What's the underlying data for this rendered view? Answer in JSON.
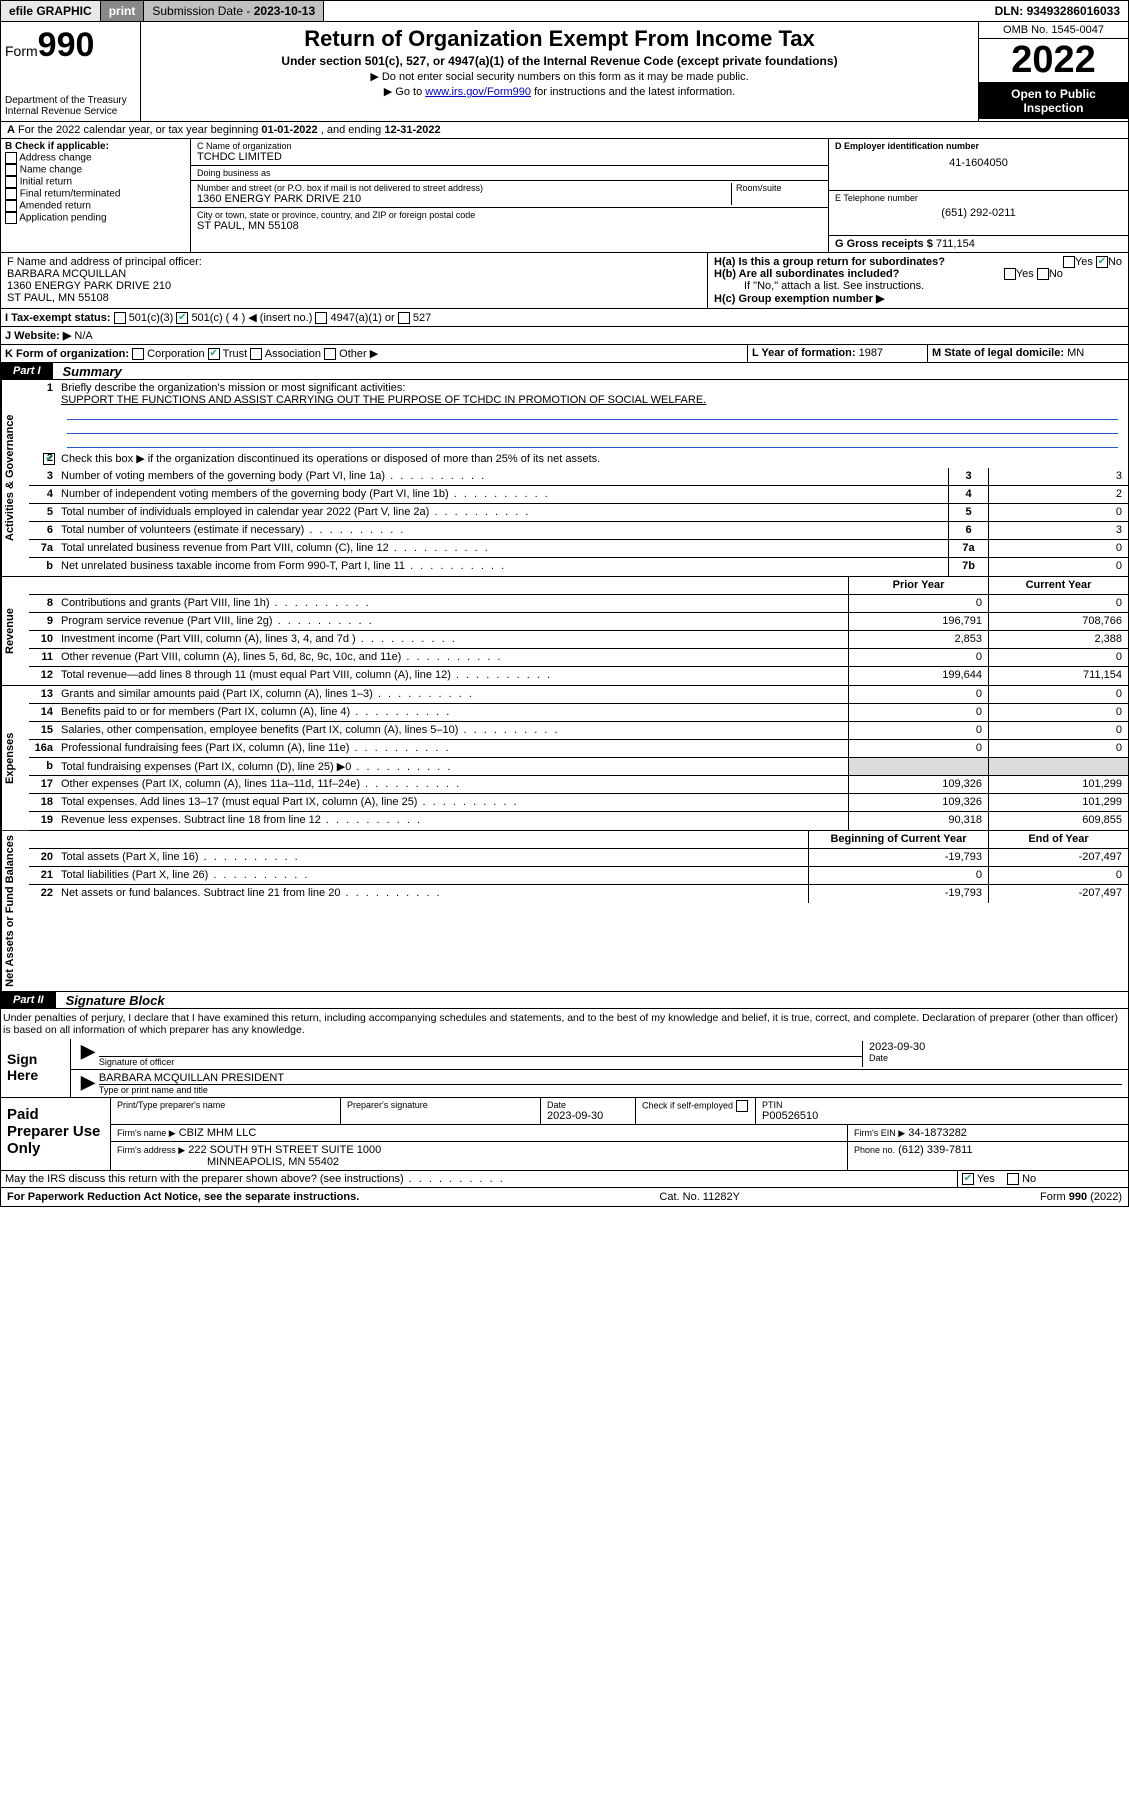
{
  "topbar": {
    "efile": "efile GRAPHIC",
    "print": "print",
    "sub_label": "Submission Date - ",
    "sub_date": "2023-10-13",
    "dln_label": "DLN: ",
    "dln": "93493286016033"
  },
  "header": {
    "form_prefix": "Form",
    "form_no": "990",
    "dept": "Department of the Treasury\nInternal Revenue Service",
    "title": "Return of Organization Exempt From Income Tax",
    "subtitle": "Under section 501(c), 527, or 4947(a)(1) of the Internal Revenue Code (except private foundations)",
    "note1": "▶ Do not enter social security numbers on this form as it may be made public.",
    "note2_pre": "▶ Go to ",
    "note2_link": "www.irs.gov/Form990",
    "note2_post": " for instructions and the latest information.",
    "omb": "OMB No. 1545-0047",
    "year": "2022",
    "inspection": "Open to Public Inspection"
  },
  "line_a": {
    "text_pre": "For the 2022 calendar year, or tax year beginning ",
    "begin": "01-01-2022",
    "mid": " , and ending ",
    "end": "12-31-2022"
  },
  "box_b": {
    "label": "B Check if applicable:",
    "items": [
      "Address change",
      "Name change",
      "Initial return",
      "Final return/terminated",
      "Amended return",
      "Application pending"
    ]
  },
  "box_c": {
    "label": "C Name of organization",
    "name": "TCHDC LIMITED",
    "dba_label": "Doing business as",
    "dba": "",
    "addr_label": "Number and street (or P.O. box if mail is not delivered to street address)",
    "room_label": "Room/suite",
    "addr": "1360 ENERGY PARK DRIVE 210",
    "city_label": "City or town, state or province, country, and ZIP or foreign postal code",
    "city": "ST PAUL, MN  55108"
  },
  "box_d": {
    "label": "D Employer identification number",
    "val": "41-1604050"
  },
  "box_e": {
    "label": "E Telephone number",
    "val": "(651) 292-0211"
  },
  "box_g": {
    "label": "G Gross receipts $",
    "val": "711,154"
  },
  "box_f": {
    "label": "F Name and address of principal officer:",
    "name": "BARBARA MCQUILLAN",
    "addr1": "1360 ENERGY PARK DRIVE 210",
    "addr2": "ST PAUL, MN  55108"
  },
  "box_h": {
    "ha": "H(a)  Is this a group return for subordinates?",
    "hb": "H(b)  Are all subordinates included?",
    "hb_note": "If \"No,\" attach a list. See instructions.",
    "hc": "H(c)  Group exemption number ▶",
    "yes": "Yes",
    "no": "No"
  },
  "box_i": {
    "label": "I   Tax-exempt status:",
    "opts": [
      "501(c)(3)",
      "501(c) ( 4 ) ◀ (insert no.)",
      "4947(a)(1) or",
      "527"
    ]
  },
  "box_j": {
    "label": "J   Website: ▶",
    "val": "N/A"
  },
  "box_k": {
    "label": "K Form of organization:",
    "opts": [
      "Corporation",
      "Trust",
      "Association",
      "Other ▶"
    ]
  },
  "box_l": {
    "label": "L Year of formation:",
    "val": "1987"
  },
  "box_m": {
    "label": "M State of legal domicile:",
    "val": "MN"
  },
  "part1": {
    "tag": "Part I",
    "title": "Summary"
  },
  "summary": {
    "sections": {
      "gov": "Activities & Governance",
      "rev": "Revenue",
      "exp": "Expenses",
      "net": "Net Assets or Fund Balances"
    },
    "line1_label": "Briefly describe the organization's mission or most significant activities:",
    "line1_text": "SUPPORT THE FUNCTIONS AND ASSIST CARRYING OUT THE PURPOSE OF TCHDC IN PROMOTION OF SOCIAL WELFARE.",
    "line2": "Check this box ▶       if the organization discontinued its operations or disposed of more than 25% of its net assets.",
    "lines_gov": [
      {
        "n": "3",
        "t": "Number of voting members of the governing body (Part VI, line 1a)",
        "num": "3",
        "val": "3"
      },
      {
        "n": "4",
        "t": "Number of independent voting members of the governing body (Part VI, line 1b)",
        "num": "4",
        "val": "2"
      },
      {
        "n": "5",
        "t": "Total number of individuals employed in calendar year 2022 (Part V, line 2a)",
        "num": "5",
        "val": "0"
      },
      {
        "n": "6",
        "t": "Total number of volunteers (estimate if necessary)",
        "num": "6",
        "val": "3"
      },
      {
        "n": "7a",
        "t": "Total unrelated business revenue from Part VIII, column (C), line 12",
        "num": "7a",
        "val": "0"
      },
      {
        "n": "b",
        "t": "Net unrelated business taxable income from Form 990-T, Part I, line 11",
        "num": "7b",
        "val": "0"
      }
    ],
    "col_hdr": {
      "prior": "Prior Year",
      "current": "Current Year"
    },
    "lines_rev": [
      {
        "n": "8",
        "t": "Contributions and grants (Part VIII, line 1h)",
        "p": "0",
        "c": "0"
      },
      {
        "n": "9",
        "t": "Program service revenue (Part VIII, line 2g)",
        "p": "196,791",
        "c": "708,766"
      },
      {
        "n": "10",
        "t": "Investment income (Part VIII, column (A), lines 3, 4, and 7d )",
        "p": "2,853",
        "c": "2,388"
      },
      {
        "n": "11",
        "t": "Other revenue (Part VIII, column (A), lines 5, 6d, 8c, 9c, 10c, and 11e)",
        "p": "0",
        "c": "0"
      },
      {
        "n": "12",
        "t": "Total revenue—add lines 8 through 11 (must equal Part VIII, column (A), line 12)",
        "p": "199,644",
        "c": "711,154"
      }
    ],
    "lines_exp": [
      {
        "n": "13",
        "t": "Grants and similar amounts paid (Part IX, column (A), lines 1–3)",
        "p": "0",
        "c": "0"
      },
      {
        "n": "14",
        "t": "Benefits paid to or for members (Part IX, column (A), line 4)",
        "p": "0",
        "c": "0"
      },
      {
        "n": "15",
        "t": "Salaries, other compensation, employee benefits (Part IX, column (A), lines 5–10)",
        "p": "0",
        "c": "0"
      },
      {
        "n": "16a",
        "t": "Professional fundraising fees (Part IX, column (A), line 11e)",
        "p": "0",
        "c": "0"
      },
      {
        "n": "b",
        "t": "Total fundraising expenses (Part IX, column (D), line 25) ▶0",
        "p": "",
        "c": "",
        "grey": true
      },
      {
        "n": "17",
        "t": "Other expenses (Part IX, column (A), lines 11a–11d, 11f–24e)",
        "p": "109,326",
        "c": "101,299"
      },
      {
        "n": "18",
        "t": "Total expenses. Add lines 13–17 (must equal Part IX, column (A), line 25)",
        "p": "109,326",
        "c": "101,299"
      },
      {
        "n": "19",
        "t": "Revenue less expenses. Subtract line 18 from line 12",
        "p": "90,318",
        "c": "609,855"
      }
    ],
    "net_hdr": {
      "begin": "Beginning of Current Year",
      "end": "End of Year"
    },
    "lines_net": [
      {
        "n": "20",
        "t": "Total assets (Part X, line 16)",
        "p": "-19,793",
        "c": "-207,497"
      },
      {
        "n": "21",
        "t": "Total liabilities (Part X, line 26)",
        "p": "0",
        "c": "0"
      },
      {
        "n": "22",
        "t": "Net assets or fund balances. Subtract line 21 from line 20",
        "p": "-19,793",
        "c": "-207,497"
      }
    ]
  },
  "part2": {
    "tag": "Part II",
    "title": "Signature Block"
  },
  "penalties": "Under penalties of perjury, I declare that I have examined this return, including accompanying schedules and statements, and to the best of my knowledge and belief, it is true, correct, and complete. Declaration of preparer (other than officer) is based on all information of which preparer has any knowledge.",
  "sign": {
    "here": "Sign Here",
    "sig_officer": "Signature of officer",
    "date_label": "Date",
    "date": "2023-09-30",
    "name": "BARBARA MCQUILLAN  PRESIDENT",
    "name_label": "Type or print name and title"
  },
  "paid": {
    "label": "Paid Preparer Use Only",
    "h1": "Print/Type preparer's name",
    "h2": "Preparer's signature",
    "h3": "Date",
    "h4": "Check        if self-employed",
    "h5": "PTIN",
    "date": "2023-09-30",
    "ptin": "P00526510",
    "firm_label": "Firm's name   ▶",
    "firm": "CBIZ MHM LLC",
    "ein_label": "Firm's EIN ▶",
    "ein": "34-1873282",
    "addr_label": "Firm's address ▶",
    "addr1": "222 SOUTH 9TH STREET SUITE 1000",
    "addr2": "MINNEAPOLIS, MN  55402",
    "phone_label": "Phone no.",
    "phone": "(612) 339-7811"
  },
  "irs_discuss": {
    "text": "May the IRS discuss this return with the preparer shown above? (see instructions)",
    "yes": "Yes",
    "no": "No"
  },
  "footer": {
    "left": "For Paperwork Reduction Act Notice, see the separate instructions.",
    "mid": "Cat. No. 11282Y",
    "right": "Form 990 (2022)"
  }
}
